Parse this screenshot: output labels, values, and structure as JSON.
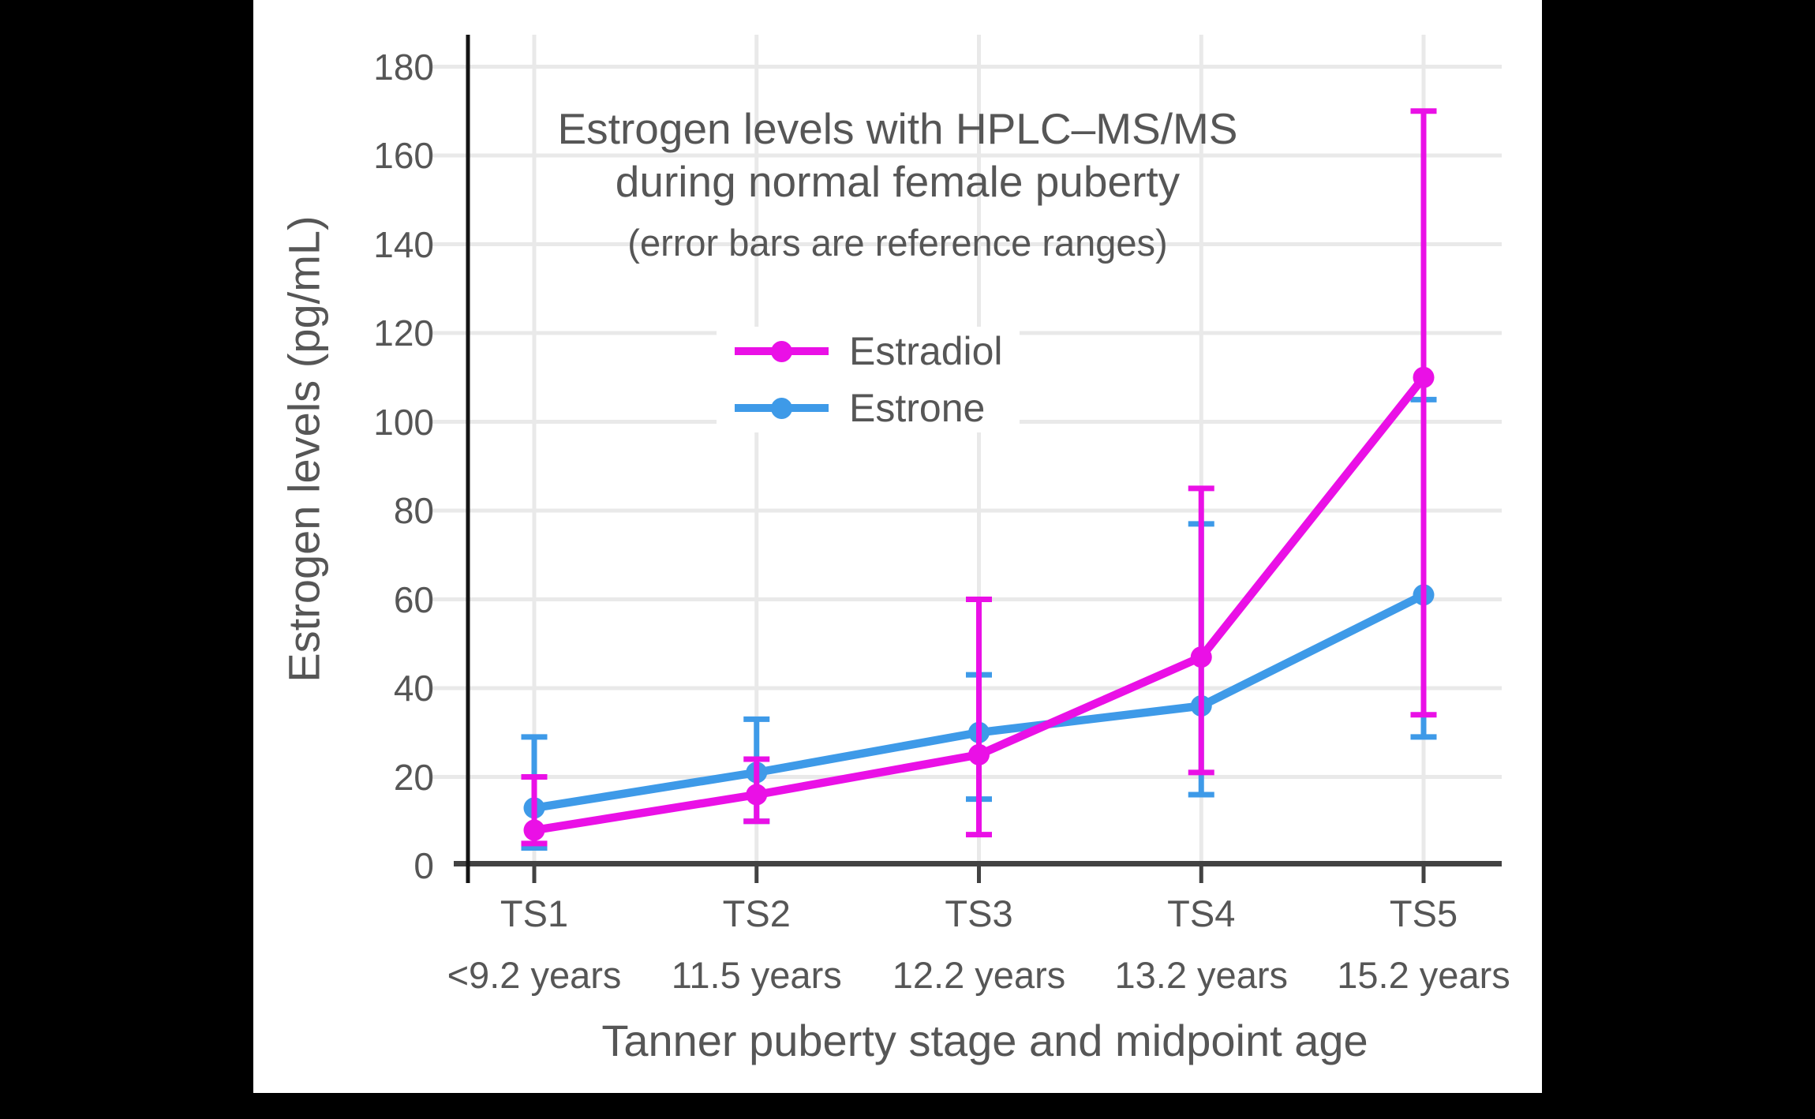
{
  "chart_data": {
    "type": "line",
    "title": "Estrogen levels with HPLC–MS/MS during normal female puberty",
    "title_lines": [
      "Estrogen levels with HPLC–MS/MS",
      "during normal female puberty"
    ],
    "subtitle": "(error bars are reference ranges)",
    "xlabel": "Tanner puberty stage and midpoint age",
    "ylabel": "Estrogen levels (pg/mL)",
    "categories": [
      "TS1",
      "TS2",
      "TS3",
      "TS4",
      "TS5"
    ],
    "category_sublabels": [
      "<9.2 years",
      "11.5 years",
      "12.2 years",
      "13.2 years",
      "15.2 years"
    ],
    "y_ticks": [
      0,
      20,
      40,
      60,
      80,
      100,
      120,
      140,
      160,
      180
    ],
    "ylim": [
      0,
      187
    ],
    "grid": true,
    "legend_position": "inside-upper-center",
    "error_bar_note": "error bars are reference ranges",
    "units": "pg/mL",
    "series": [
      {
        "name": "Estradiol",
        "color": "#EA10E6",
        "values": [
          8,
          16,
          25,
          47,
          110
        ],
        "error_low": [
          5,
          10,
          7,
          21,
          34
        ],
        "error_high": [
          20,
          24,
          60,
          85,
          170
        ]
      },
      {
        "name": "Estrone",
        "color": "#3E9AE8",
        "values": [
          13,
          21,
          30,
          36,
          61
        ],
        "error_low": [
          4,
          10,
          15,
          16,
          29
        ],
        "error_high": [
          29,
          33,
          43,
          77,
          105
        ]
      }
    ],
    "colors": {
      "grid": "#E9E9E9",
      "x_spine": "#424242",
      "y_spine": "#141414",
      "text": "#565656",
      "panel_background": "#FFFFFF",
      "canvas_background": "#000000"
    }
  }
}
